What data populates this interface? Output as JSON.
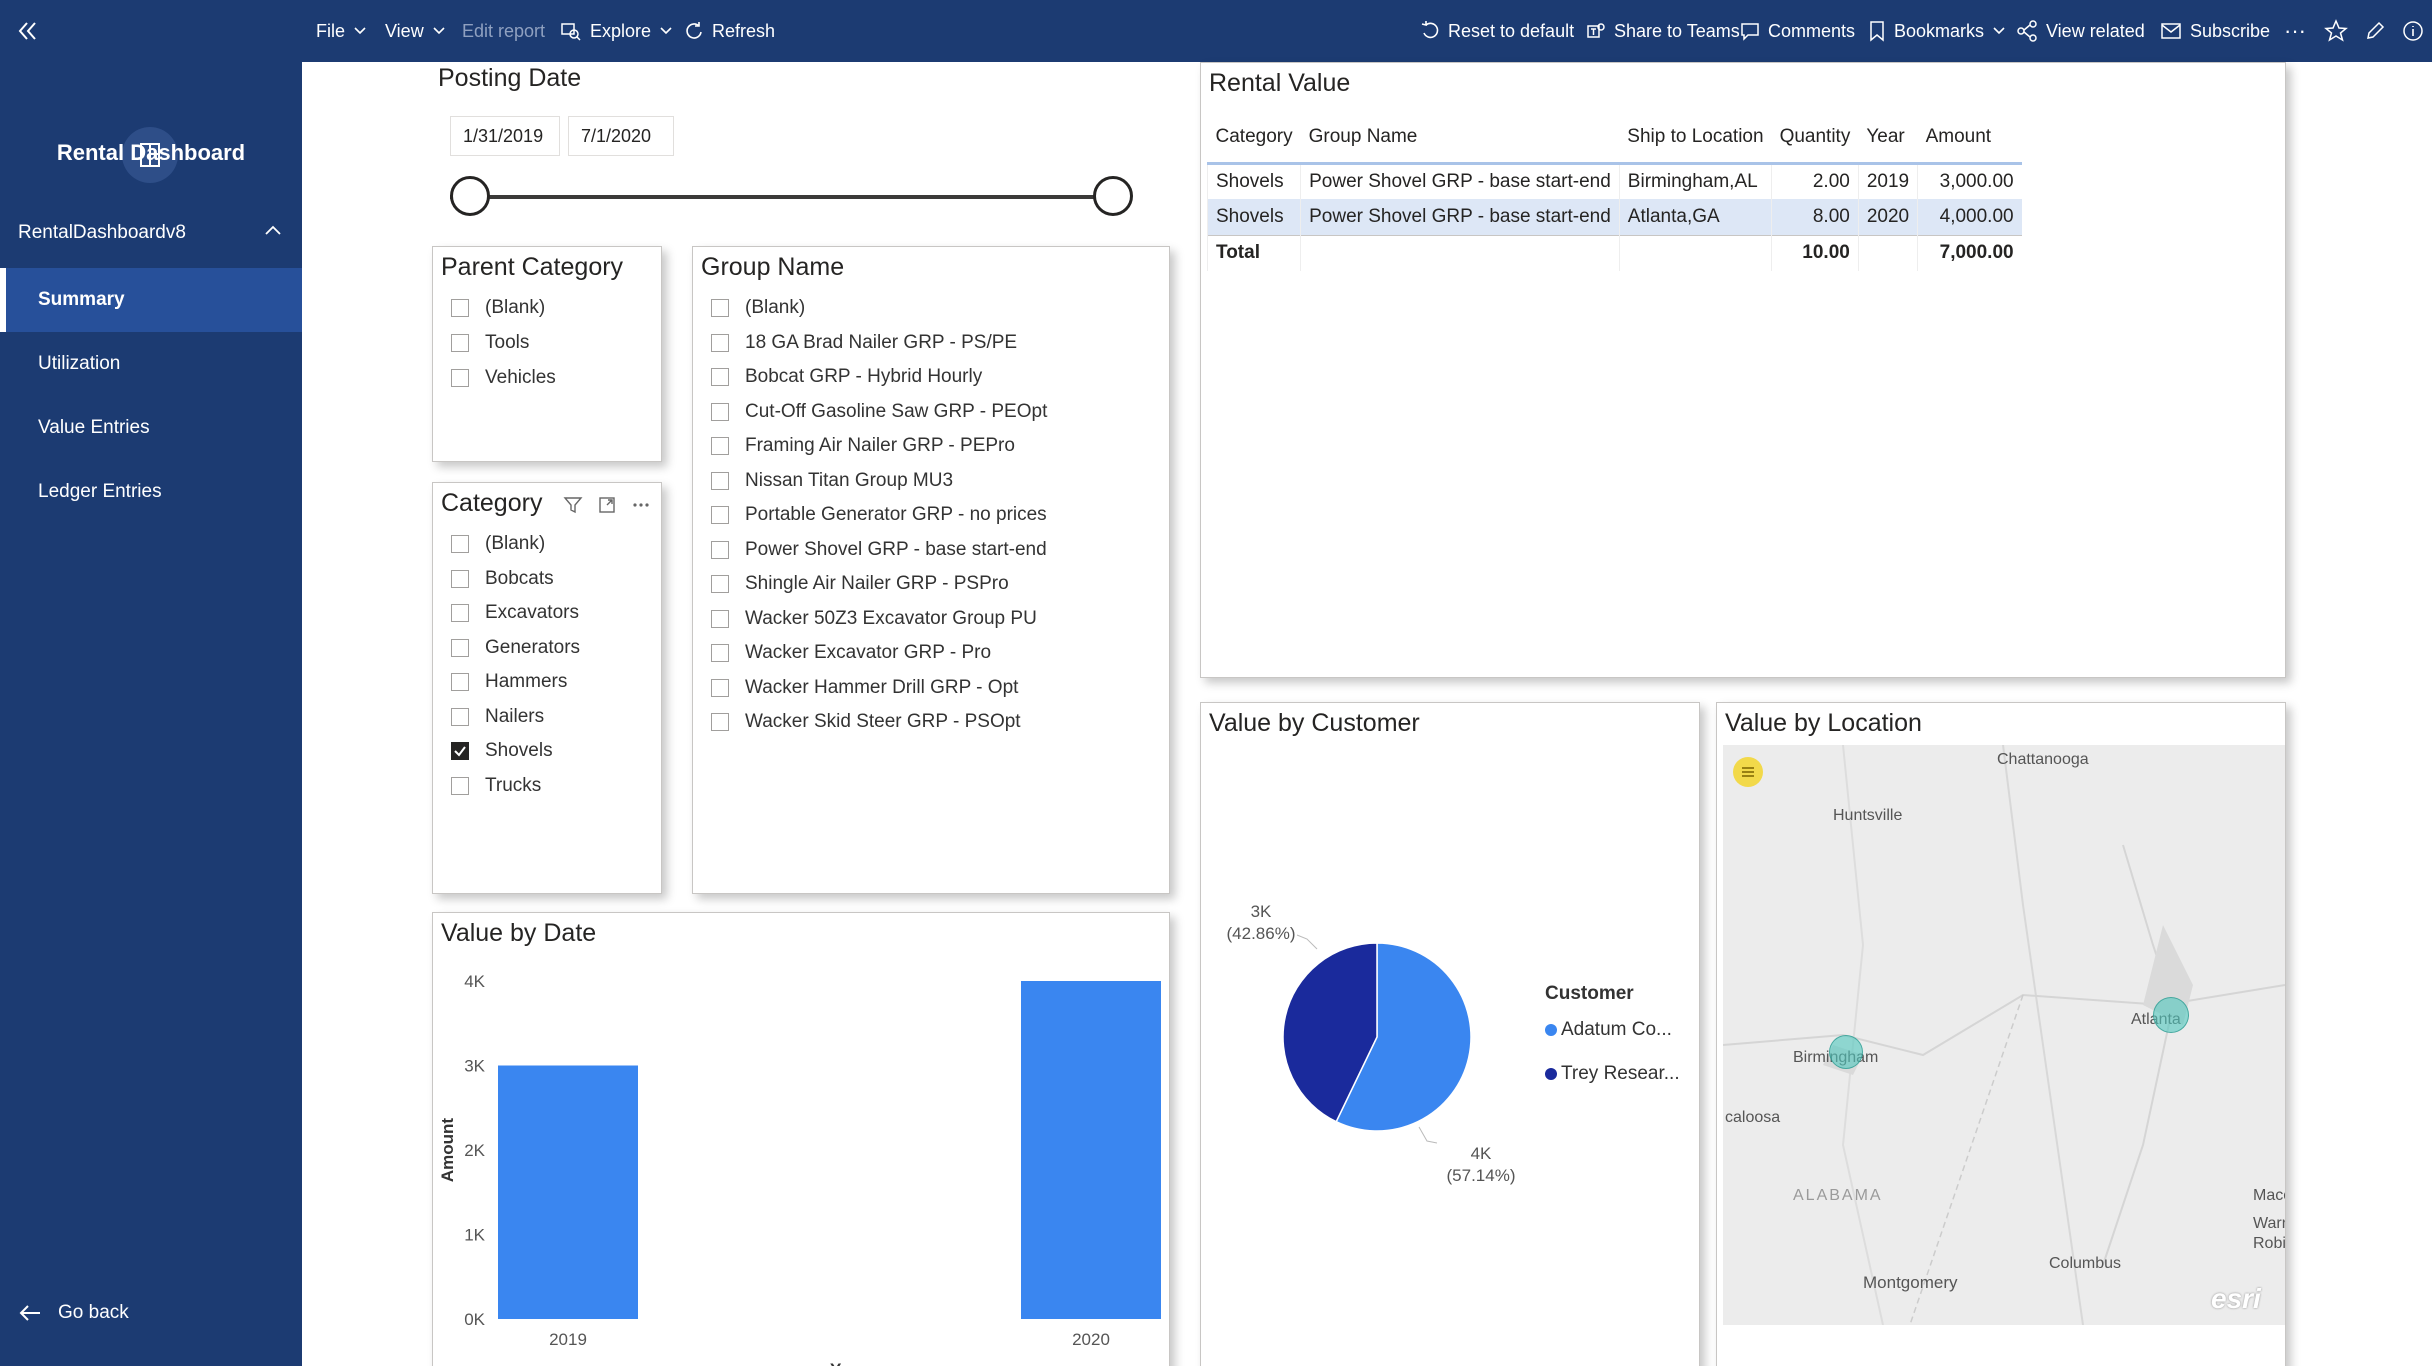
{
  "topbar": {
    "file": "File",
    "view": "View",
    "edit_report": "Edit report",
    "explore": "Explore",
    "refresh": "Refresh",
    "reset": "Reset to default",
    "share": "Share to Teams",
    "comments": "Comments",
    "bookmarks": "Bookmarks",
    "view_related": "View related",
    "subscribe": "Subscribe",
    "more": "···"
  },
  "sidebar": {
    "app_title": "Rental Dashboard",
    "report_name": "RentalDashboardv8",
    "items": [
      {
        "label": "Summary",
        "active": true
      },
      {
        "label": "Utilization",
        "active": false
      },
      {
        "label": "Value Entries",
        "active": false
      },
      {
        "label": "Ledger Entries",
        "active": false
      }
    ],
    "go_back": "Go back"
  },
  "posting_date": {
    "title": "Posting Date",
    "start": "1/31/2019",
    "end": "7/1/2020"
  },
  "parent_category": {
    "title": "Parent Category",
    "options": [
      "(Blank)",
      "Tools",
      "Vehicles"
    ]
  },
  "category": {
    "title": "Category",
    "options": [
      {
        "label": "(Blank)",
        "checked": false
      },
      {
        "label": "Bobcats",
        "checked": false
      },
      {
        "label": "Excavators",
        "checked": false
      },
      {
        "label": "Generators",
        "checked": false
      },
      {
        "label": "Hammers",
        "checked": false
      },
      {
        "label": "Nailers",
        "checked": false
      },
      {
        "label": "Shovels",
        "checked": true
      },
      {
        "label": "Trucks",
        "checked": false
      }
    ]
  },
  "group_name": {
    "title": "Group Name",
    "options": [
      "(Blank)",
      "18 GA Brad Nailer GRP - PS/PE",
      "Bobcat GRP - Hybrid Hourly",
      "Cut-Off Gasoline Saw GRP - PEOpt",
      "Framing Air Nailer GRP - PEPro",
      "Nissan Titan Group MU3",
      "Portable Generator GRP - no prices",
      "Power Shovel GRP - base start-end",
      "Shingle Air Nailer GRP - PSPro",
      "Wacker 50Z3 Excavator Group PU",
      "Wacker Excavator GRP - Pro",
      "Wacker Hammer Drill GRP - Opt",
      "Wacker Skid Steer GRP - PSOpt"
    ]
  },
  "rental_value": {
    "title": "Rental Value",
    "columns": [
      "Category",
      "Group Name",
      "Ship to Location",
      "Quantity",
      "Year",
      "Amount"
    ],
    "rows": [
      [
        "Shovels",
        "Power Shovel GRP - base start-end",
        "Birmingham,AL",
        "2.00",
        "2019",
        "3,000.00"
      ],
      [
        "Shovels",
        "Power Shovel GRP - base start-end",
        "Atlanta,GA",
        "8.00",
        "2020",
        "4,000.00"
      ]
    ],
    "total": {
      "label": "Total",
      "quantity": "10.00",
      "amount": "7,000.00"
    }
  },
  "value_by_date": {
    "title": "Value by Date"
  },
  "value_by_customer": {
    "title": "Value by Customer",
    "legend_title": "Customer",
    "slices": [
      {
        "name": "Adatum Co...",
        "value": 4000,
        "label": "4K",
        "pct": "(57.14%)",
        "color": "#3a86f0"
      },
      {
        "name": "Trey Resear...",
        "value": 3000,
        "label": "3K",
        "pct": "(42.86%)",
        "color": "#1a2a9c"
      }
    ]
  },
  "value_by_location": {
    "title": "Value by Location",
    "labels": {
      "chattanooga": "Chattanooga",
      "huntsville": "Huntsville",
      "birmingham": "Birmingham",
      "atlanta": "Atlanta",
      "tuscaloosa": "caloosa",
      "alabama": "ALABAMA",
      "montgomery": "Montgomery",
      "columbus": "Columbus",
      "macon": "Maco",
      "warner": "Warn",
      "robins": "Robi",
      "esri": "esri"
    }
  },
  "chart_data": {
    "type": "bar",
    "title": "Value by Date",
    "categories": [
      "2019",
      "2020"
    ],
    "values": [
      3000,
      4000
    ],
    "xlabel": "Year",
    "ylabel": "Amount",
    "ylim": [
      0,
      4000
    ],
    "yticks": [
      "0K",
      "1K",
      "2K",
      "3K",
      "4K"
    ],
    "color": "#3a86f0"
  }
}
